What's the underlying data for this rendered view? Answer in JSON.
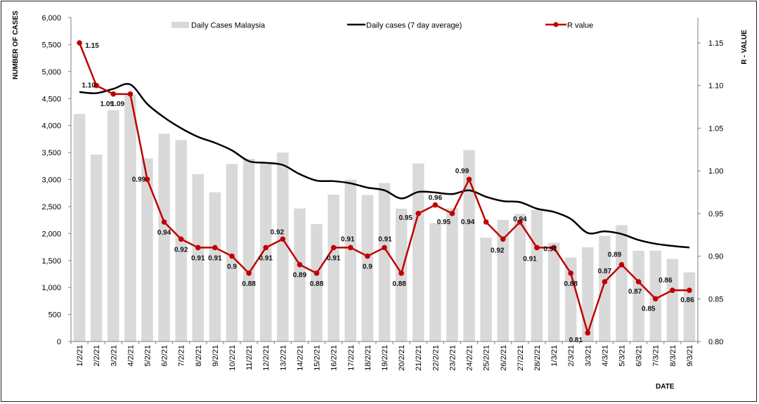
{
  "chart_data": {
    "type": "bar",
    "title": "",
    "xlabel": "DATE",
    "ylabel": "NUMBER OF CASES",
    "y2label": "R - VALUE",
    "ylim": [
      0,
      6000
    ],
    "y2lim": [
      0.8,
      1.18
    ],
    "grid": false,
    "legend_position": "top",
    "colors": {
      "bars": "#d9d9d9",
      "avg_line": "#000000",
      "r_line": "#c00000"
    },
    "categories": [
      "1/2/21",
      "2/2/21",
      "3/2/21",
      "4/2/21",
      "5/2/21",
      "6/2/21",
      "7/2/21",
      "8/2/21",
      "9/2/21",
      "10/2/21",
      "11/2/21",
      "12/2/21",
      "13/2/21",
      "14/2/21",
      "15/2/21",
      "16/2/21",
      "17/2/21",
      "18/2/21",
      "19/2/21",
      "20/2/21",
      "21/2/21",
      "22/2/21",
      "23/2/21",
      "24/2/21",
      "25/2/21",
      "26/2/21",
      "27/2/21",
      "28/2/21",
      "1/3/21",
      "2/3/21",
      "3/3/21",
      "4/3/21",
      "5/3/21",
      "6/3/21",
      "7/3/21",
      "8/3/21",
      "9/3/21"
    ],
    "yticks": [
      "0",
      "500",
      "1,000",
      "1,500",
      "2,000",
      "2,500",
      "3,000",
      "3,500",
      "4,000",
      "4,500",
      "5,000",
      "5,500",
      "6,000"
    ],
    "y2ticks": [
      "0.80",
      "0.85",
      "0.90",
      "0.95",
      "1.00",
      "1.05",
      "1.10",
      "1.15"
    ],
    "series": [
      {
        "name": "Daily Cases Malaysia",
        "kind": "bar",
        "values": [
          4214,
          3462,
          4284,
          4571,
          3391,
          3847,
          3731,
          3100,
          2764,
          3288,
          3384,
          3318,
          3499,
          2464,
          2176,
          2720,
          2998,
          2712,
          2936,
          2461,
          3297,
          2192,
          2468,
          3545,
          1924,
          2253,
          2364,
          2437,
          1828,
          1555,
          1745,
          1959,
          2154,
          1680,
          1683,
          1529,
          1280
        ]
      },
      {
        "name": "Daily cases (7 day average)",
        "kind": "line",
        "values": [
          4620,
          4600,
          4680,
          4760,
          4400,
          4150,
          3950,
          3790,
          3680,
          3540,
          3340,
          3310,
          3270,
          3100,
          2980,
          2970,
          2930,
          2850,
          2800,
          2650,
          2770,
          2760,
          2730,
          2800,
          2680,
          2600,
          2580,
          2460,
          2400,
          2270,
          2010,
          2040,
          1990,
          1880,
          1810,
          1770,
          1740
        ]
      },
      {
        "name": "R value",
        "kind": "line-marker",
        "axis": "right",
        "values": [
          1.15,
          1.1,
          1.09,
          1.09,
          0.99,
          0.94,
          0.92,
          0.91,
          0.91,
          0.9,
          0.88,
          0.91,
          0.92,
          0.89,
          0.88,
          0.91,
          0.91,
          0.9,
          0.91,
          0.88,
          0.95,
          0.96,
          0.95,
          0.99,
          0.94,
          0.92,
          0.94,
          0.91,
          0.91,
          0.88,
          0.81,
          0.87,
          0.89,
          0.87,
          0.85,
          0.86,
          0.86
        ],
        "labels": [
          "1.15",
          "1.10",
          "1.09",
          "1.09",
          "0.99",
          "0.94",
          "0.92",
          "0.91",
          "0.91",
          "0.9",
          "0.88",
          "0.91",
          "0.92",
          "0.89",
          "0.88",
          "0.91",
          "0.91",
          "0.9",
          "0.91",
          "0.88",
          "0.95",
          "0.96",
          "0.95",
          "0.99",
          "0.94",
          "0.92",
          "0.94",
          "0.91",
          "0.91",
          "0.88",
          "0.81",
          "0.87",
          "0.89",
          "0.87",
          "0.85",
          "0.86",
          "0.86"
        ]
      }
    ]
  }
}
